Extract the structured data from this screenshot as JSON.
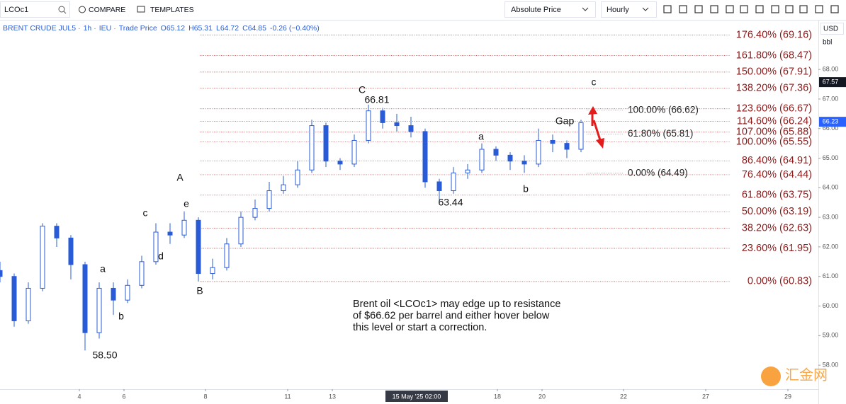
{
  "toolbar": {
    "symbol": "LCOc1",
    "compare": "COMPARE",
    "templates": "TEMPLATES",
    "price_mode": "Absolute Price",
    "interval": "Hourly"
  },
  "legend": {
    "name": "BRENT CRUDE JUL5",
    "interval": "1h",
    "exchange": "IEU",
    "price_type": "Trade Price",
    "open": "O65.12",
    "high": "H65.31",
    "low": "L64.72",
    "close": "C64.85",
    "change": "-0.26 (−0.40%)"
  },
  "chart_data": {
    "type": "candlestick",
    "currency": "USD",
    "unit": "bbl",
    "color": "#2a5bd7",
    "xlim": [
      0,
      115.5
    ],
    "ylim": [
      57.19,
      69.63
    ],
    "yticks": [
      {
        "value": 58,
        "label": "58.00"
      },
      {
        "value": 59,
        "label": "59.00"
      },
      {
        "value": 60,
        "label": "60.00"
      },
      {
        "value": 61,
        "label": "61.00"
      },
      {
        "value": 62,
        "label": "62.00"
      },
      {
        "value": 63,
        "label": "63.00"
      },
      {
        "value": 64,
        "label": "64.00"
      },
      {
        "value": 65,
        "label": "65.00"
      },
      {
        "value": 66,
        "label": "66.00"
      },
      {
        "value": 67,
        "label": "67.00"
      },
      {
        "value": 68,
        "label": "68.00"
      }
    ],
    "xticks": [
      {
        "value": 11.2,
        "label": "4"
      },
      {
        "value": 17.5,
        "label": "6"
      },
      {
        "value": 29,
        "label": "8"
      },
      {
        "value": 40.6,
        "label": "11"
      },
      {
        "value": 46.9,
        "label": "13"
      },
      {
        "value": 70.2,
        "label": "18"
      },
      {
        "value": 76.5,
        "label": "20"
      },
      {
        "value": 88,
        "label": "22"
      },
      {
        "value": 99.6,
        "label": "27"
      },
      {
        "value": 111.2,
        "label": "29"
      }
    ],
    "crosshair": {
      "value": 58.8,
      "label": "15 May '25  02:00"
    },
    "x": [
      0,
      2,
      4,
      6,
      8,
      10,
      12,
      14,
      16,
      18,
      20,
      22,
      24,
      26,
      28,
      30,
      32,
      34,
      36,
      38,
      40,
      42,
      44,
      46,
      48,
      50,
      52,
      54,
      56,
      58,
      60,
      62,
      64,
      66,
      68,
      70,
      72,
      74,
      76,
      78,
      80,
      82
    ],
    "open": [
      61.2,
      61.0,
      59.5,
      60.6,
      62.7,
      62.3,
      61.4,
      59.1,
      60.6,
      60.2,
      60.7,
      61.5,
      62.5,
      62.4,
      62.9,
      61.1,
      61.3,
      62.1,
      63.0,
      63.3,
      63.9,
      64.1,
      64.6,
      66.1,
      64.9,
      64.8,
      65.6,
      66.6,
      66.2,
      66.1,
      65.9,
      64.2,
      63.9,
      64.5,
      64.6,
      65.3,
      65.1,
      64.9,
      64.8,
      65.6,
      65.5,
      65.3
    ],
    "high": [
      61.5,
      61.1,
      60.8,
      62.8,
      62.8,
      62.4,
      61.5,
      60.8,
      60.8,
      60.9,
      61.7,
      62.8,
      62.8,
      63.2,
      63.0,
      61.6,
      62.3,
      63.2,
      63.6,
      64.2,
      64.4,
      64.9,
      66.3,
      66.2,
      65.0,
      65.8,
      66.81,
      66.7,
      66.5,
      66.4,
      66.0,
      64.3,
      64.7,
      64.8,
      65.5,
      65.4,
      65.2,
      65.1,
      66.0,
      65.8,
      65.6,
      66.3
    ],
    "low": [
      60.8,
      59.3,
      59.4,
      60.5,
      62.0,
      60.9,
      58.5,
      58.9,
      59.7,
      60.1,
      60.6,
      61.4,
      62.1,
      62.3,
      60.83,
      60.9,
      61.2,
      62.0,
      62.9,
      63.2,
      63.8,
      64.0,
      64.5,
      64.7,
      64.6,
      64.7,
      65.5,
      66.0,
      65.9,
      65.7,
      64.0,
      63.44,
      63.8,
      64.3,
      64.5,
      64.9,
      64.6,
      64.5,
      64.7,
      65.2,
      65.0,
      65.2
    ],
    "close": [
      61.0,
      59.5,
      60.6,
      62.7,
      62.3,
      61.4,
      59.1,
      60.6,
      60.2,
      60.7,
      61.5,
      62.5,
      62.4,
      62.9,
      61.1,
      61.3,
      62.1,
      63.0,
      63.3,
      63.9,
      64.1,
      64.6,
      66.1,
      64.9,
      64.8,
      65.6,
      66.6,
      66.2,
      66.1,
      65.9,
      64.2,
      63.9,
      64.5,
      64.6,
      65.3,
      65.1,
      64.9,
      64.8,
      65.6,
      65.5,
      65.3,
      66.2
    ],
    "price_tags": [
      67.57,
      66.23
    ],
    "fib_levels": [
      {
        "value": 69.16,
        "label": "176.40% (69.16)"
      },
      {
        "value": 68.47,
        "label": "161.80% (68.47)"
      },
      {
        "value": 67.91,
        "label": "150.00% (67.91)"
      },
      {
        "value": 67.36,
        "label": "138.20% (67.36)"
      },
      {
        "value": 66.67,
        "label": "123.60% (66.67)"
      },
      {
        "value": 66.24,
        "label": "114.60% (66.24)"
      },
      {
        "value": 65.88,
        "label": "107.00% (65.88)"
      },
      {
        "value": 65.55,
        "label": "100.00% (65.55)"
      },
      {
        "value": 64.91,
        "label": "86.40% (64.91)"
      },
      {
        "value": 64.44,
        "label": "76.40% (64.44)"
      },
      {
        "value": 63.75,
        "label": "61.80% (63.75)"
      },
      {
        "value": 63.19,
        "label": "50.00% (63.19)"
      },
      {
        "value": 62.63,
        "label": "38.20% (62.63)"
      },
      {
        "value": 61.95,
        "label": "23.60% (61.95)"
      },
      {
        "value": 60.83,
        "label": "0.00% (60.83)"
      }
    ],
    "projection_levels": [
      {
        "value": 66.62,
        "label": "100.00% (66.62)"
      },
      {
        "value": 65.81,
        "label": "61.80% (65.81)"
      },
      {
        "value": 64.49,
        "label": "0.00% (64.49)"
      }
    ],
    "annotations": [
      "C",
      "66.81",
      "A",
      "e",
      "c",
      "d",
      "a",
      "b",
      "B",
      "58.50",
      "a",
      "b",
      "63.44",
      "Gap",
      "c"
    ],
    "note": [
      "Brent oil <LCOc1> may edge up to resistance",
      "of $66.62 per barrel and either hover below",
      "this level or start a correction."
    ],
    "watermark": "汇金网"
  }
}
